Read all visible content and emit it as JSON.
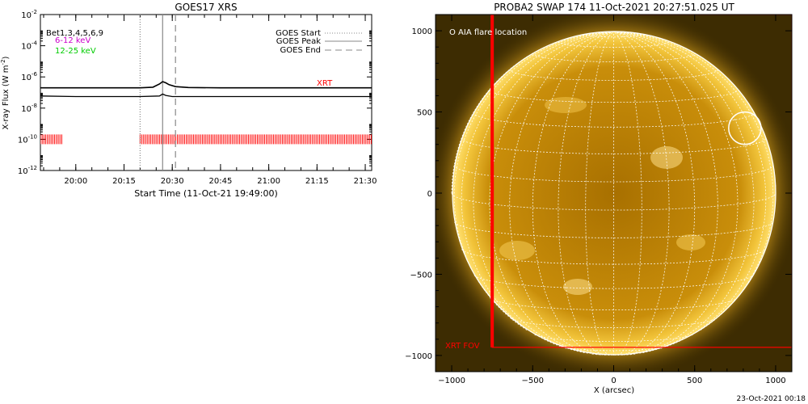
{
  "left_panel": {
    "title": "GOES17 XRS",
    "ylabel_main": "X-ray Flux (W m",
    "ylabel_sup": "-2",
    "ylabel_close": ")",
    "xlabel": "Start Time (11-Oct-21 19:49:00)",
    "legend_text": {
      "bet": "Bet",
      "bet_series": "1,3,4,5,6,9",
      "band_mid": "6-12 keV",
      "band_high": "12-25 keV",
      "start": "GOES Start",
      "peak": "GOES Peak",
      "end": "GOES End"
    },
    "xrt_label": "XRT"
  },
  "right_panel": {
    "title": "PROBA2 SWAP 174 11-Oct-2021 20:27:51.025 UT",
    "legend_flare": "O AIA flare location",
    "xrt_fov_label": "XRT FOV",
    "xlabel": "X (arcsec)",
    "footer": "23-Oct-2021 00:18"
  },
  "colors": {
    "xrt": "#ff0000",
    "band_mid": "#cc00cc",
    "band_high": "#00cc00",
    "sun_core": "#c48a00",
    "sun_limb": "#ffd84a",
    "background": "#3a2a00"
  },
  "chart_data": [
    {
      "type": "line",
      "title": "GOES17 XRS",
      "xlabel": "Start Time (11-Oct-21 19:49:00)",
      "ylabel": "X-ray Flux (W m-2)",
      "yscale": "log",
      "x_unit": "time (11-Oct-21)",
      "xlim": [
        "19:49",
        "21:32"
      ],
      "ylim": [
        1e-12,
        0.01
      ],
      "x_ticks": [
        "20:00",
        "20:15",
        "20:30",
        "20:45",
        "21:00",
        "21:15",
        "21:30"
      ],
      "y_ticks": [
        "10-12",
        "10-10",
        "10-8",
        "10-6",
        "10-4",
        "10-2"
      ],
      "series": [
        {
          "name": "",
          "x": [
            "19:49",
            "20:00",
            "20:10",
            "20:20",
            "20:24",
            "20:26",
            "20:27",
            "20:28",
            "20:29",
            "20:31",
            "20:35",
            "20:45",
            "21:00",
            "21:15",
            "21:30",
            "21:32"
          ],
          "values": [
            2e-07,
            2e-07,
            2e-07,
            2e-07,
            2.2e-07,
            3.5e-07,
            5e-07,
            4.2e-07,
            3.2e-07,
            2.4e-07,
            2.1e-07,
            2e-07,
            2e-07,
            2e-07,
            2e-07,
            2e-07
          ]
        },
        {
          "name": "",
          "x": [
            "19:49",
            "20:00",
            "20:10",
            "20:20",
            "20:26",
            "20:27",
            "20:28",
            "20:30",
            "20:45",
            "21:00",
            "21:15",
            "21:30",
            "21:32"
          ],
          "values": [
            6e-08,
            5.5e-08,
            5.5e-08,
            5.5e-08,
            6e-08,
            8e-08,
            6.5e-08,
            5.5e-08,
            5.5e-08,
            5.5e-08,
            5.5e-08,
            5.5e-08,
            5.5e-08
          ]
        }
      ],
      "vlines": [
        {
          "label": "GOES Start",
          "x": "20:20",
          "style": "dotted"
        },
        {
          "label": "GOES Peak",
          "x": "20:27",
          "style": "solid"
        },
        {
          "label": "GOES End",
          "x": "20:31",
          "style": "dashed"
        }
      ],
      "xrt_coverage": [
        {
          "start": "19:49",
          "end": "19:56"
        },
        {
          "start": "20:20",
          "end": "21:32"
        }
      ],
      "xrt_coverage_level": 1e-10,
      "legend": "top-right"
    },
    {
      "type": "image",
      "title": "PROBA2 SWAP 174 11-Oct-2021 20:27:51.025 UT",
      "xlabel": "X (arcsec)",
      "xlim": [
        -1100,
        1100
      ],
      "ylim": [
        -1100,
        1100
      ],
      "x_ticks": [
        -1000,
        -500,
        0,
        500,
        1000
      ],
      "y_ticks": [
        -1000,
        -500,
        0,
        500,
        1000
      ],
      "solar_radius_arcsec": 1000,
      "grid": true,
      "flare_location": {
        "x": 810,
        "y": 400,
        "radius": 100
      },
      "xrt_fov": {
        "x_min": -750,
        "x_max": 1100,
        "y_min": -950,
        "y_max": 1100
      }
    }
  ]
}
